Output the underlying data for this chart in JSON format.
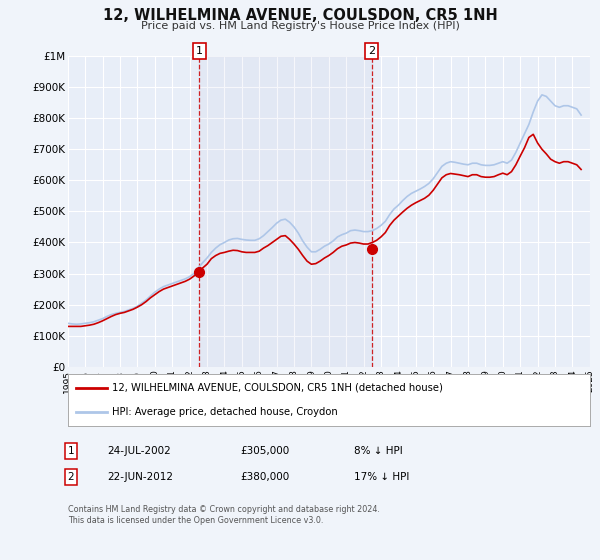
{
  "title": "12, WILHELMINA AVENUE, COULSDON, CR5 1NH",
  "subtitle": "Price paid vs. HM Land Registry's House Price Index (HPI)",
  "ylim": [
    0,
    1000000
  ],
  "xlim": [
    1995,
    2025
  ],
  "yticks": [
    0,
    100000,
    200000,
    300000,
    400000,
    500000,
    600000,
    700000,
    800000,
    900000,
    1000000
  ],
  "ytick_labels": [
    "£0",
    "£100K",
    "£200K",
    "£300K",
    "£400K",
    "£500K",
    "£600K",
    "£700K",
    "£800K",
    "£900K",
    "£1M"
  ],
  "hpi_color": "#aec6e8",
  "price_color": "#cc0000",
  "background_color": "#f0f4fa",
  "plot_bg_color": "#e8eef8",
  "grid_color": "#ffffff",
  "sale1_x": 2002.55,
  "sale1_y": 305000,
  "sale1_label": "1",
  "sale1_date": "24-JUL-2002",
  "sale1_price": "£305,000",
  "sale1_pct": "8% ↓ HPI",
  "sale2_x": 2012.47,
  "sale2_y": 380000,
  "sale2_label": "2",
  "sale2_date": "22-JUN-2012",
  "sale2_price": "£380,000",
  "sale2_pct": "17% ↓ HPI",
  "legend_line1": "12, WILHELMINA AVENUE, COULSDON, CR5 1NH (detached house)",
  "legend_line2": "HPI: Average price, detached house, Croydon",
  "footer": "Contains HM Land Registry data © Crown copyright and database right 2024.\nThis data is licensed under the Open Government Licence v3.0.",
  "hpi_data_x": [
    1995.0,
    1995.25,
    1995.5,
    1995.75,
    1996.0,
    1996.25,
    1996.5,
    1996.75,
    1997.0,
    1997.25,
    1997.5,
    1997.75,
    1998.0,
    1998.25,
    1998.5,
    1998.75,
    1999.0,
    1999.25,
    1999.5,
    1999.75,
    2000.0,
    2000.25,
    2000.5,
    2000.75,
    2001.0,
    2001.25,
    2001.5,
    2001.75,
    2002.0,
    2002.25,
    2002.5,
    2002.75,
    2003.0,
    2003.25,
    2003.5,
    2003.75,
    2004.0,
    2004.25,
    2004.5,
    2004.75,
    2005.0,
    2005.25,
    2005.5,
    2005.75,
    2006.0,
    2006.25,
    2006.5,
    2006.75,
    2007.0,
    2007.25,
    2007.5,
    2007.75,
    2008.0,
    2008.25,
    2008.5,
    2008.75,
    2009.0,
    2009.25,
    2009.5,
    2009.75,
    2010.0,
    2010.25,
    2010.5,
    2010.75,
    2011.0,
    2011.25,
    2011.5,
    2011.75,
    2012.0,
    2012.25,
    2012.5,
    2012.75,
    2013.0,
    2013.25,
    2013.5,
    2013.75,
    2014.0,
    2014.25,
    2014.5,
    2014.75,
    2015.0,
    2015.25,
    2015.5,
    2015.75,
    2016.0,
    2016.25,
    2016.5,
    2016.75,
    2017.0,
    2017.25,
    2017.5,
    2017.75,
    2018.0,
    2018.25,
    2018.5,
    2018.75,
    2019.0,
    2019.25,
    2019.5,
    2019.75,
    2020.0,
    2020.25,
    2020.5,
    2020.75,
    2021.0,
    2021.25,
    2021.5,
    2021.75,
    2022.0,
    2022.25,
    2022.5,
    2022.75,
    2023.0,
    2023.25,
    2023.5,
    2023.75,
    2024.0,
    2024.25,
    2024.5
  ],
  "hpi_data_y": [
    140000,
    138000,
    137000,
    138000,
    140000,
    142000,
    145000,
    150000,
    155000,
    162000,
    168000,
    172000,
    175000,
    178000,
    183000,
    188000,
    195000,
    205000,
    215000,
    228000,
    240000,
    250000,
    258000,
    263000,
    268000,
    273000,
    278000,
    283000,
    290000,
    300000,
    318000,
    335000,
    350000,
    368000,
    382000,
    393000,
    400000,
    408000,
    412000,
    413000,
    410000,
    408000,
    407000,
    407000,
    412000,
    422000,
    435000,
    448000,
    462000,
    472000,
    475000,
    465000,
    450000,
    430000,
    405000,
    385000,
    370000,
    370000,
    378000,
    388000,
    395000,
    405000,
    418000,
    425000,
    430000,
    438000,
    440000,
    438000,
    435000,
    435000,
    438000,
    445000,
    455000,
    468000,
    490000,
    508000,
    520000,
    535000,
    548000,
    558000,
    565000,
    572000,
    580000,
    590000,
    605000,
    625000,
    645000,
    655000,
    660000,
    658000,
    655000,
    652000,
    650000,
    655000,
    655000,
    650000,
    648000,
    648000,
    650000,
    655000,
    660000,
    655000,
    665000,
    690000,
    720000,
    750000,
    780000,
    820000,
    855000,
    875000,
    870000,
    855000,
    840000,
    835000,
    840000,
    840000,
    835000,
    830000,
    810000
  ],
  "price_data_x": [
    1995.0,
    1995.25,
    1995.5,
    1995.75,
    1996.0,
    1996.25,
    1996.5,
    1996.75,
    1997.0,
    1997.25,
    1997.5,
    1997.75,
    1998.0,
    1998.25,
    1998.5,
    1998.75,
    1999.0,
    1999.25,
    1999.5,
    1999.75,
    2000.0,
    2000.25,
    2000.5,
    2000.75,
    2001.0,
    2001.25,
    2001.5,
    2001.75,
    2002.0,
    2002.25,
    2002.5,
    2002.75,
    2003.0,
    2003.25,
    2003.5,
    2003.75,
    2004.0,
    2004.25,
    2004.5,
    2004.75,
    2005.0,
    2005.25,
    2005.5,
    2005.75,
    2006.0,
    2006.25,
    2006.5,
    2006.75,
    2007.0,
    2007.25,
    2007.5,
    2007.75,
    2008.0,
    2008.25,
    2008.5,
    2008.75,
    2009.0,
    2009.25,
    2009.5,
    2009.75,
    2010.0,
    2010.25,
    2010.5,
    2010.75,
    2011.0,
    2011.25,
    2011.5,
    2011.75,
    2012.0,
    2012.25,
    2012.5,
    2012.75,
    2013.0,
    2013.25,
    2013.5,
    2013.75,
    2014.0,
    2014.25,
    2014.5,
    2014.75,
    2015.0,
    2015.25,
    2015.5,
    2015.75,
    2016.0,
    2016.25,
    2016.5,
    2016.75,
    2017.0,
    2017.25,
    2017.5,
    2017.75,
    2018.0,
    2018.25,
    2018.5,
    2018.75,
    2019.0,
    2019.25,
    2019.5,
    2019.75,
    2020.0,
    2020.25,
    2020.5,
    2020.75,
    2021.0,
    2021.25,
    2021.5,
    2021.75,
    2022.0,
    2022.25,
    2022.5,
    2022.75,
    2023.0,
    2023.25,
    2023.5,
    2023.75,
    2024.0,
    2024.25,
    2024.5
  ],
  "price_data_y": [
    130000,
    130000,
    130000,
    130000,
    132000,
    134000,
    137000,
    142000,
    148000,
    155000,
    162000,
    168000,
    172000,
    175000,
    180000,
    185000,
    192000,
    200000,
    210000,
    222000,
    232000,
    242000,
    250000,
    255000,
    260000,
    265000,
    270000,
    275000,
    282000,
    292000,
    305000,
    318000,
    330000,
    348000,
    358000,
    365000,
    368000,
    372000,
    375000,
    374000,
    370000,
    368000,
    368000,
    368000,
    372000,
    382000,
    390000,
    400000,
    410000,
    420000,
    422000,
    410000,
    395000,
    378000,
    358000,
    340000,
    330000,
    332000,
    340000,
    350000,
    358000,
    368000,
    380000,
    388000,
    392000,
    398000,
    400000,
    398000,
    395000,
    395000,
    400000,
    407000,
    418000,
    432000,
    455000,
    472000,
    485000,
    498000,
    510000,
    520000,
    528000,
    535000,
    542000,
    552000,
    568000,
    588000,
    608000,
    618000,
    622000,
    620000,
    618000,
    615000,
    612000,
    618000,
    618000,
    612000,
    610000,
    610000,
    612000,
    618000,
    623000,
    618000,
    628000,
    650000,
    678000,
    705000,
    738000,
    748000,
    720000,
    700000,
    685000,
    668000,
    660000,
    655000,
    660000,
    660000,
    655000,
    650000,
    635000
  ]
}
